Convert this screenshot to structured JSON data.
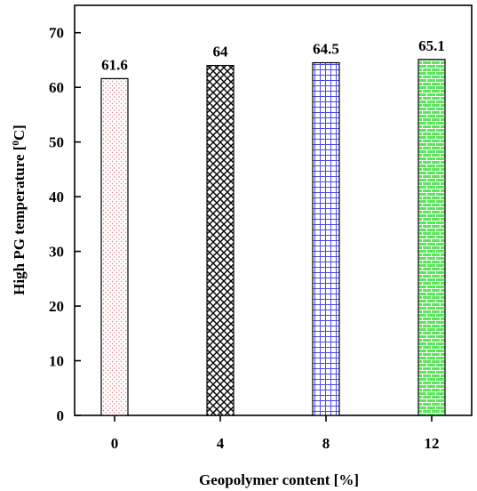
{
  "chart_data": {
    "type": "bar",
    "categories": [
      "0",
      "4",
      "8",
      "12"
    ],
    "values": [
      61.6,
      64,
      64.5,
      65.1
    ],
    "data_labels": [
      "61.6",
      "64",
      "64.5",
      "65.1"
    ],
    "xlabel": "Geopolymer content [%]",
    "ylabel_main": "High PG temperature [",
    "ylabel_sup": "0",
    "ylabel_tail": "C]",
    "ylim": [
      0,
      75
    ],
    "yticks": [
      0,
      10,
      20,
      30,
      40,
      50,
      60,
      70
    ],
    "grid": false,
    "bar_patterns": [
      "dots",
      "diagonal-cross",
      "grid",
      "brick"
    ],
    "bar_colors": [
      "#e0707a",
      "#000000",
      "#4a4ae8",
      "#12b012"
    ],
    "bar_fills": [
      "#ffffff",
      "#ffffff",
      "#ffffff",
      "#5ce65c"
    ]
  }
}
